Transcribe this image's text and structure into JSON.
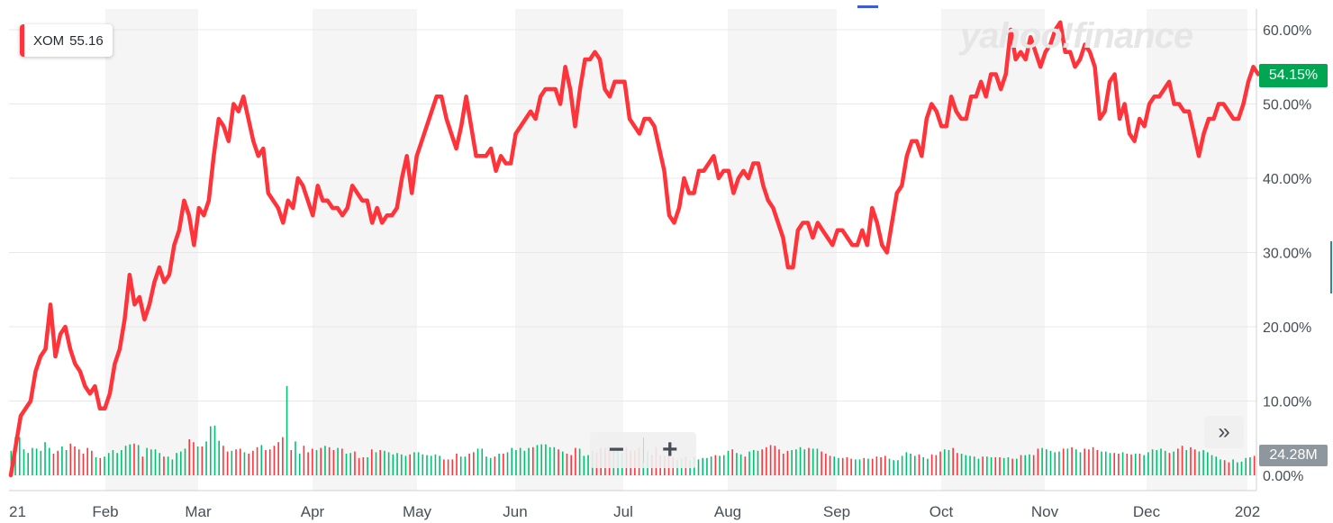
{
  "legend": {
    "symbol": "XOM",
    "value": "55.16"
  },
  "watermark": "yahoo!finance",
  "current_change": "54.15%",
  "current_volume": "24.28M",
  "controls": {
    "zoom_out": "−",
    "zoom_in": "+",
    "expand": "»"
  },
  "colors": {
    "line": "#ff333a",
    "up": "#00c073",
    "down": "#ff333a",
    "badge_green": "#00a651",
    "band": "#f5f5f5"
  },
  "chart_data": {
    "type": "line",
    "title": "",
    "xlabel": "",
    "ylabel": "",
    "ylim": [
      0,
      62
    ],
    "y_ticks": [
      "60.00%",
      "50.00%",
      "40.00%",
      "30.00%",
      "20.00%",
      "10.00%",
      "0.00%"
    ],
    "x_ticks": [
      "21",
      "Feb",
      "Mar",
      "Apr",
      "May",
      "Jun",
      "Jul",
      "Aug",
      "Sep",
      "Oct",
      "Nov",
      "Dec",
      "202"
    ],
    "series": [
      {
        "values": [
          0,
          4,
          8,
          9,
          10,
          14,
          16,
          17,
          23,
          16,
          19,
          20,
          17,
          15,
          14,
          12,
          11,
          12,
          9,
          9,
          11,
          15,
          17,
          21,
          27,
          23,
          24,
          21,
          23,
          26,
          28,
          26,
          27,
          31,
          33,
          37,
          35,
          31,
          36,
          35,
          37,
          43,
          48,
          47,
          45,
          50,
          49,
          51,
          48,
          45,
          43,
          44,
          38,
          37,
          36,
          34,
          37,
          36,
          40,
          39,
          37,
          35,
          39,
          37,
          37,
          36,
          36,
          35,
          36,
          39,
          38,
          37,
          37,
          34,
          36,
          34,
          35,
          35,
          36,
          40,
          43,
          38,
          43,
          45,
          47,
          49,
          51,
          51,
          48,
          46,
          44,
          47,
          51,
          47,
          43,
          43,
          43,
          44,
          41,
          43,
          42,
          42,
          46,
          47,
          48,
          49,
          48,
          51,
          52,
          52,
          52,
          50,
          55,
          52,
          47,
          52,
          56,
          56,
          57,
          56,
          52,
          51,
          53,
          53,
          53,
          48,
          47,
          46,
          48,
          48,
          47,
          44,
          41,
          35,
          34,
          36,
          40,
          38,
          38,
          41,
          41,
          42,
          43,
          40,
          41,
          41,
          38,
          40,
          41,
          40,
          42,
          42,
          39,
          37,
          36,
          34,
          32,
          28,
          28,
          33,
          34,
          34,
          32,
          34,
          33,
          32,
          31,
          33,
          33,
          32,
          31,
          31,
          33,
          31,
          36,
          34,
          31,
          30,
          34,
          38,
          39,
          43,
          45,
          45,
          43,
          48,
          50,
          49,
          47,
          47,
          51,
          49,
          48,
          48,
          51,
          51,
          53,
          51,
          54,
          54,
          52,
          54,
          60,
          56,
          57,
          56,
          59,
          57,
          55,
          57,
          58,
          60,
          61,
          57,
          57,
          55,
          56,
          58,
          57,
          55,
          48,
          49,
          53,
          54,
          48,
          50,
          46,
          45,
          48,
          47,
          50,
          51,
          51,
          52,
          53,
          50,
          50,
          49,
          49,
          46,
          43,
          46,
          48,
          48,
          50,
          50,
          49,
          48,
          48,
          50,
          53,
          55,
          54
        ]
      }
    ],
    "volume": [
      3.4,
      5.3,
      5.3,
      3.6,
      3.1,
      3.8,
      3.7,
      3.4,
      4.6,
      3.8,
      3.0,
      3.4,
      4.0,
      3.5,
      4.4,
      4.0,
      3.6,
      3.0,
      3.8,
      3.4,
      2.5,
      2.4,
      2.6,
      3.1,
      3.5,
      3.1,
      3.5,
      4.1,
      4.3,
      4.4,
      4.2,
      2.6,
      3.8,
      3.6,
      3.6,
      3.1,
      2.6,
      2.6,
      2.2,
      3.1,
      3.3,
      3.7,
      5.0,
      4.6,
      4.0,
      4.0,
      4.7,
      6.8,
      6.9,
      4.8,
      4.1,
      3.3,
      3.4,
      3.6,
      3.7,
      3.2,
      3.0,
      3.4,
      3.9,
      4.2,
      3.5,
      3.6,
      4.1,
      4.6,
      5.3,
      12.4,
      3.5,
      4.7,
      3.0,
      4.1,
      3.2,
      3.7,
      3.5,
      3.8,
      4.1,
      3.9,
      3.5,
      3.8,
      3.7,
      3.0,
      3.1,
      3.3,
      2.4,
      2.5,
      2.5,
      3.6,
      3.2,
      3.5,
      3.4,
      3.2,
      2.9,
      3.1,
      2.9,
      2.7,
      2.9,
      3.2,
      3.2,
      2.9,
      2.8,
      2.7,
      2.9,
      2.7,
      2.2,
      2.2,
      2.2,
      3.0,
      2.6,
      2.6,
      3.0,
      3.2,
      3.7,
      3.7,
      2.6,
      2.4,
      2.6,
      3.0,
      3.0,
      3.2,
      3.8,
      3.5,
      3.8,
      3.4,
      3.8,
      3.9,
      4.2,
      4.3,
      4.3,
      3.9,
      3.9,
      3.6,
      3.3,
      3.0,
      2.8,
      3.8,
      3.7,
      2.7,
      2.8,
      3.4,
      3.2,
      3.8,
      3.8,
      3.5,
      3.8,
      3.7,
      3.1,
      3.9,
      3.4,
      3.4,
      3.8,
      3.7,
      3.4,
      2.9,
      3.9,
      2.8,
      2.7,
      2.7,
      2.5,
      2.2,
      2.3,
      2.6,
      2.1,
      2.6,
      2.2,
      2.4,
      2.4,
      2.6,
      2.8,
      2.7,
      2.8,
      3.4,
      3.6,
      3.1,
      2.9,
      2.6,
      3.3,
      3.5,
      3.4,
      3.6,
      3.9,
      4.2,
      4.1,
      3.6,
      3.0,
      3.4,
      3.5,
      3.6,
      3.9,
      3.6,
      3.8,
      3.7,
      3.7,
      3.3,
      3.0,
      2.7,
      2.6,
      2.4,
      2.4,
      2.5,
      2.3,
      2.2,
      2.2,
      2.4,
      2.3,
      2.3,
      2.6,
      2.5,
      2.7,
      2.3,
      2.1,
      2.1,
      2.7,
      3.2,
      3.0,
      2.7,
      2.9,
      2.5,
      2.3,
      2.9,
      2.8,
      3.3,
      3.6,
      3.5,
      3.8,
      3.1,
      3.0,
      2.8,
      2.7,
      2.6,
      2.3,
      2.6,
      2.6,
      2.5,
      2.5,
      2.5,
      2.4,
      2.5,
      2.3,
      2.3,
      2.8,
      2.8,
      2.9,
      2.8,
      3.7,
      3.8,
      3.6,
      3.4,
      3.2,
      3.3,
      3.7,
      3.7,
      3.9,
      3.6,
      3.2,
      3.7,
      3.6,
      3.9,
      3.5,
      3.3,
      3.3,
      3.1,
      3.1,
      3.0,
      3.2,
      3.0,
      2.9,
      3.0,
      3.0,
      2.8,
      3.2,
      3.6,
      3.5,
      3.7,
      3.4,
      3.1,
      3.3,
      3.7,
      4.1,
      3.5,
      3.9,
      3.6,
      3.3,
      3.5,
      3.2,
      2.8,
      2.6,
      2.2,
      2.1,
      1.8,
      2.2,
      1.8,
      1.9,
      2.4,
      2.5,
      2.7
    ]
  }
}
